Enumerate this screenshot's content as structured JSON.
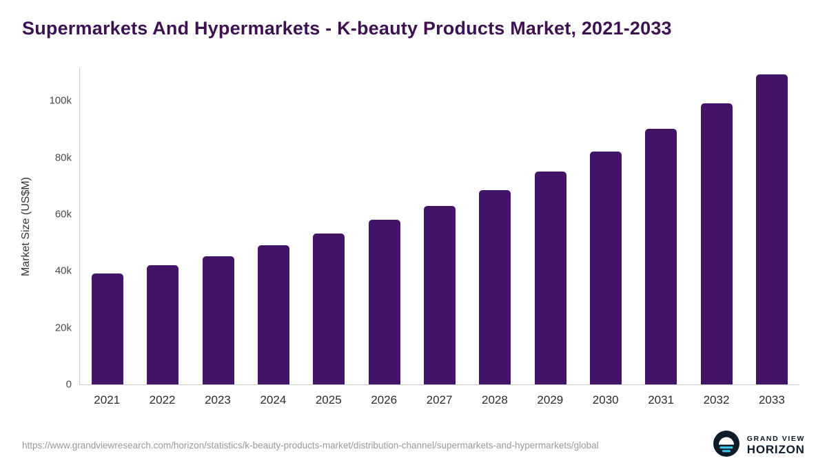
{
  "title": "Supermarkets And Hypermarkets - K-beauty Products Market, 2021-2033",
  "chart_data": {
    "type": "bar",
    "title": "Supermarkets And Hypermarkets - K-beauty Products Market, 2021-2033",
    "categories": [
      "2021",
      "2022",
      "2023",
      "2024",
      "2025",
      "2026",
      "2027",
      "2028",
      "2029",
      "2030",
      "2031",
      "2032",
      "2033"
    ],
    "values": [
      39000,
      42000,
      45300,
      49000,
      53200,
      58000,
      63000,
      68600,
      75000,
      82200,
      90100,
      99000,
      109200
    ],
    "xlabel": "",
    "ylabel": "Market Size (US$M)",
    "ylim": [
      0,
      111500
    ],
    "yticks": [
      {
        "value": 0,
        "label": "0"
      },
      {
        "value": 20000,
        "label": "20k"
      },
      {
        "value": 40000,
        "label": "40k"
      },
      {
        "value": 60000,
        "label": "60k"
      },
      {
        "value": 80000,
        "label": "80k"
      },
      {
        "value": 100000,
        "label": "100k"
      }
    ],
    "grid": false,
    "legend": null,
    "bar_color": "#421367"
  },
  "colors": {
    "bar": "#421367",
    "title": "#3d1152",
    "logo_dark": "#0e1b2a",
    "logo_cyan": "#3ec6ea"
  },
  "footer": {
    "source_url": "https://www.grandviewresearch.com/horizon/statistics/k-beauty-products-market/distribution-channel/supermarkets-and-hypermarkets/global",
    "logo": {
      "line1": "GRAND VIEW",
      "line2": "HORIZON"
    }
  }
}
